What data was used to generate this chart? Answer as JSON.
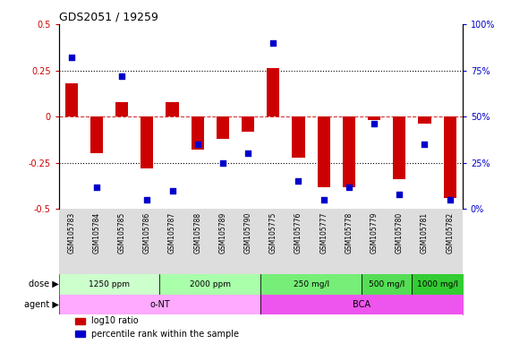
{
  "title": "GDS2051 / 19259",
  "samples": [
    "GSM105783",
    "GSM105784",
    "GSM105785",
    "GSM105786",
    "GSM105787",
    "GSM105788",
    "GSM105789",
    "GSM105790",
    "GSM105775",
    "GSM105776",
    "GSM105777",
    "GSM105778",
    "GSM105779",
    "GSM105780",
    "GSM105781",
    "GSM105782"
  ],
  "log10_ratio": [
    0.18,
    -0.2,
    0.08,
    -0.28,
    0.08,
    -0.18,
    -0.12,
    -0.08,
    0.26,
    -0.22,
    -0.38,
    -0.38,
    -0.02,
    -0.34,
    -0.04,
    -0.44
  ],
  "percentile_rank": [
    82,
    12,
    72,
    5,
    10,
    35,
    25,
    30,
    90,
    15,
    5,
    12,
    46,
    8,
    35,
    5
  ],
  "bar_color": "#cc0000",
  "dot_color": "#0000cc",
  "ylim": [
    -0.5,
    0.5
  ],
  "y2lim": [
    0,
    100
  ],
  "yticks": [
    -0.5,
    -0.25,
    0.0,
    0.25,
    0.5
  ],
  "ytick_labels": [
    "-0.5",
    "-0.25",
    "0",
    "0.25",
    "0.5"
  ],
  "y2ticks": [
    0,
    25,
    50,
    75,
    100
  ],
  "y2ticklabels": [
    "0%",
    "25%",
    "50%",
    "75%",
    "100%"
  ],
  "hlines_dotted": [
    0.25,
    -0.25
  ],
  "hline_zero_color": "#cc0000",
  "dose_groups": [
    {
      "label": "1250 ppm",
      "start": 0,
      "end": 4,
      "color": "#ccffcc"
    },
    {
      "label": "2000 ppm",
      "start": 4,
      "end": 8,
      "color": "#aaffaa"
    },
    {
      "label": "250 mg/l",
      "start": 8,
      "end": 12,
      "color": "#77ee77"
    },
    {
      "label": "500 mg/l",
      "start": 12,
      "end": 14,
      "color": "#55dd55"
    },
    {
      "label": "1000 mg/l",
      "start": 14,
      "end": 16,
      "color": "#33cc33"
    }
  ],
  "agent_groups": [
    {
      "label": "o-NT",
      "start": 0,
      "end": 8,
      "color": "#ffaaff"
    },
    {
      "label": "BCA",
      "start": 8,
      "end": 16,
      "color": "#ee55ee"
    }
  ],
  "dose_label": "dose",
  "agent_label": "agent",
  "legend_items": [
    {
      "color": "#cc0000",
      "label": "log10 ratio"
    },
    {
      "color": "#0000cc",
      "label": "percentile rank within the sample"
    }
  ],
  "sample_band_color": "#dddddd",
  "background_color": "#ffffff"
}
